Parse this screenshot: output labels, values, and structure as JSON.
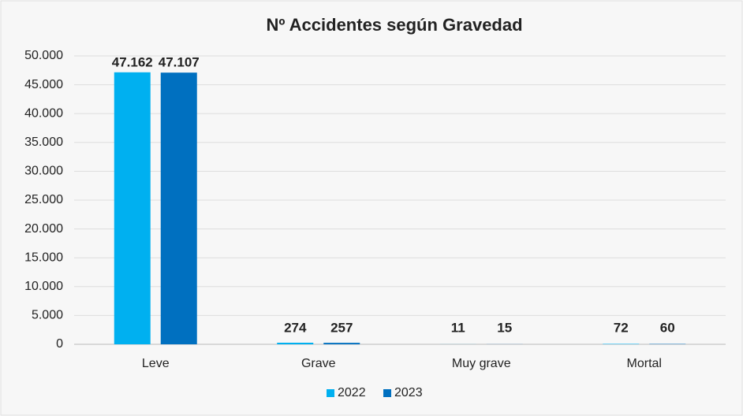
{
  "chart_data": {
    "type": "bar",
    "title": "Nº Accidentes según Gravedad",
    "categories": [
      "Leve",
      "Grave",
      "Muy grave",
      "Mortal"
    ],
    "series": [
      {
        "name": "2022",
        "color": "#00b0f0",
        "values": [
          47162,
          274,
          11,
          72
        ],
        "value_labels": [
          "47.162",
          "274",
          "11",
          "72"
        ]
      },
      {
        "name": "2023",
        "color": "#0070c0",
        "values": [
          47107,
          257,
          15,
          60
        ],
        "value_labels": [
          "47.107",
          "257",
          "15",
          "60"
        ]
      }
    ],
    "ylim": [
      0,
      50000
    ],
    "yticks": [
      0,
      {
        "value": 5000,
        "label": "5.000"
      },
      {
        "value": 10000,
        "label": "10.000"
      },
      {
        "value": 15000,
        "label": "15.000"
      },
      {
        "value": 20000,
        "label": "20.000"
      },
      {
        "value": 25000,
        "label": "25.000"
      },
      {
        "value": 30000,
        "label": "30.000"
      },
      {
        "value": 35000,
        "label": "35.000"
      },
      {
        "value": 40000,
        "label": "40.000"
      },
      {
        "value": 45000,
        "label": "45.000"
      },
      {
        "value": 50000,
        "label": "50.000"
      }
    ],
    "grid": true,
    "legend": "bottom"
  }
}
